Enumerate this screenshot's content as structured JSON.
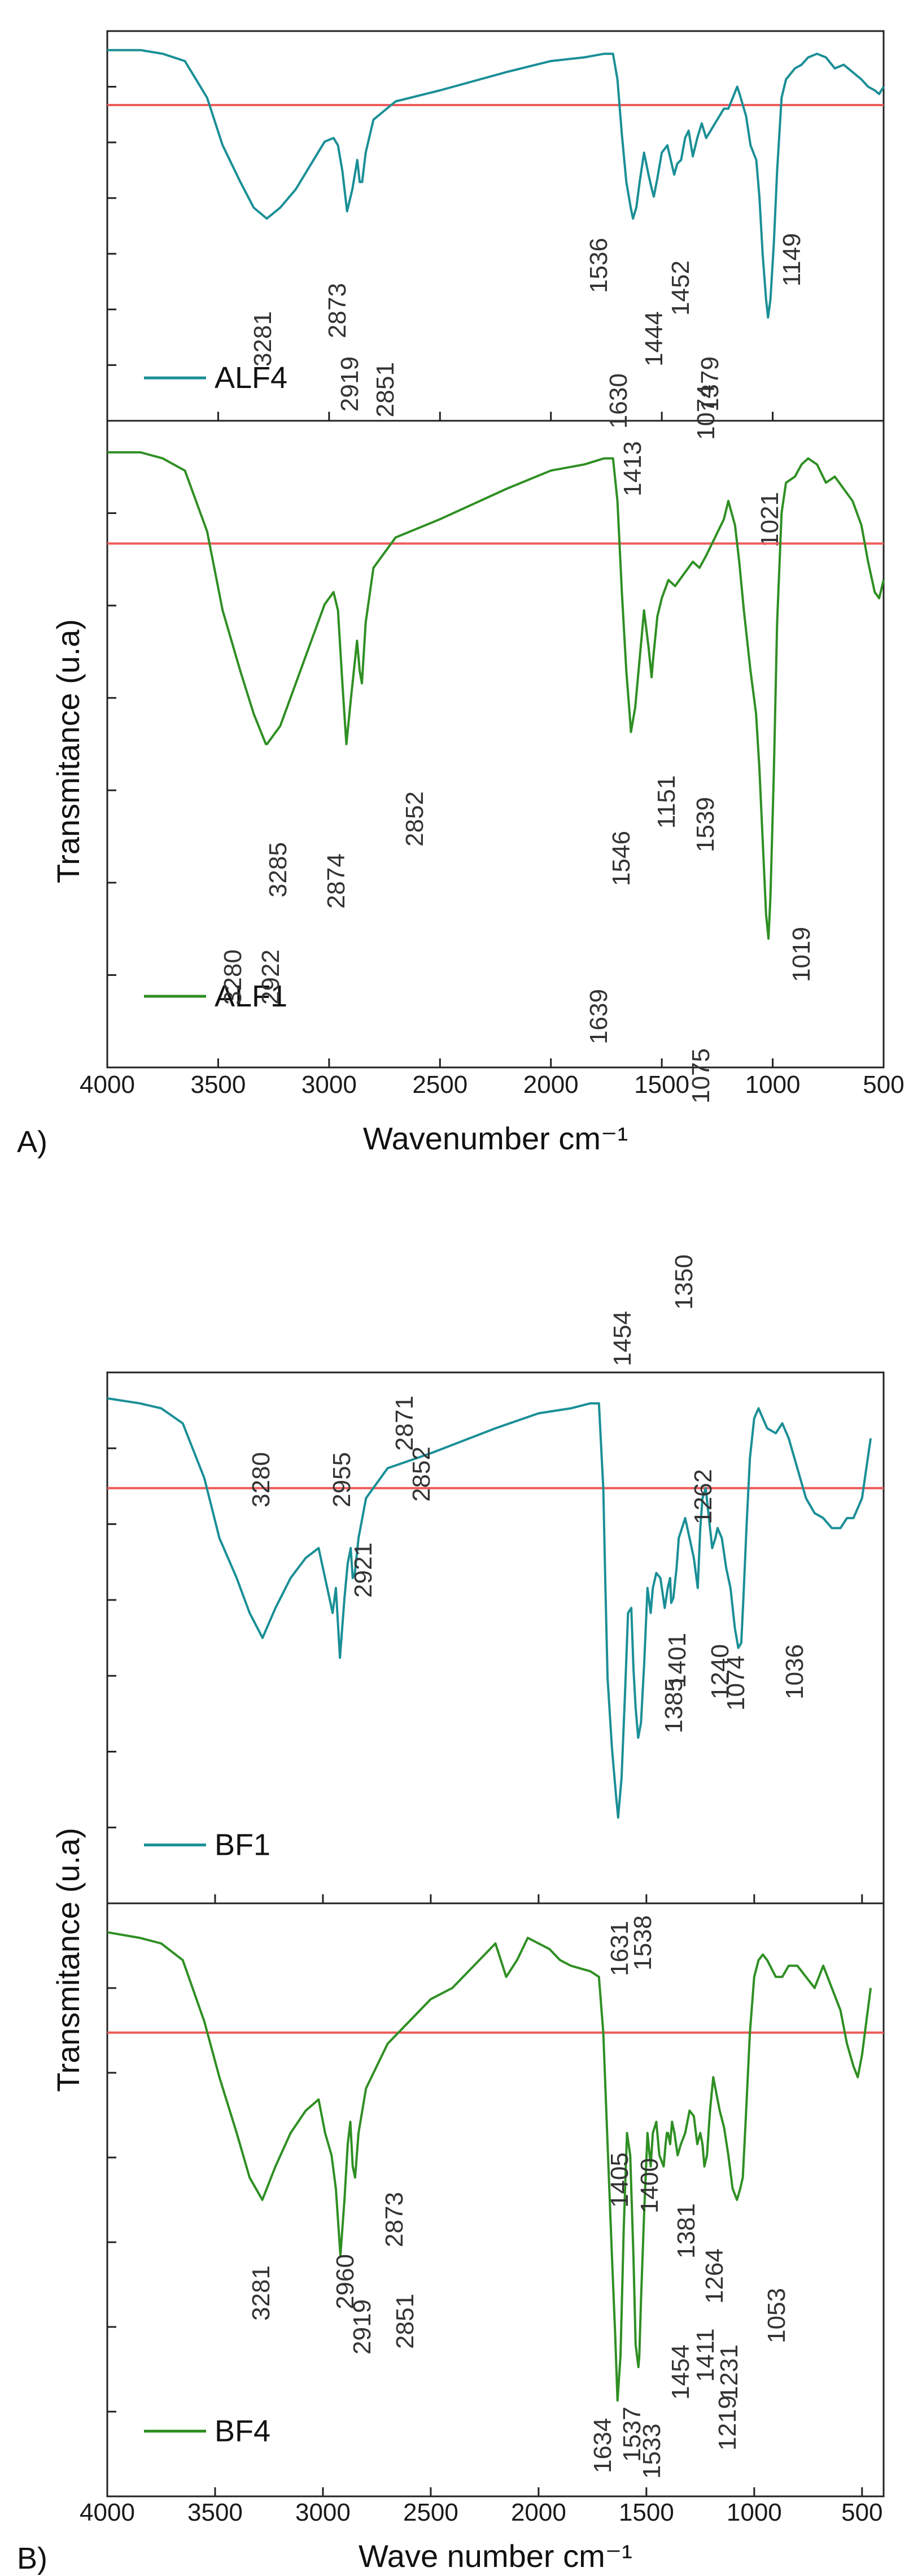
{
  "chart_data": [
    {
      "panel_label": "A)",
      "type": "line",
      "xlabel": "Wavenumber cm⁻¹",
      "ylabel": "Transmitance (u.a)",
      "xlim": [
        4000,
        500
      ],
      "xticks": [
        "4000",
        "3500",
        "3000",
        "2500",
        "2000",
        "1500",
        "1000",
        "500"
      ],
      "ylim": [
        0,
        100
      ],
      "series": [
        {
          "name": "ALF4",
          "color": "#1a8f96",
          "baseline_y": 83,
          "x": [
            4000,
            3850,
            3750,
            3650,
            3550,
            3480,
            3400,
            3340,
            3281,
            3220,
            3150,
            3080,
            3020,
            2980,
            2960,
            2940,
            2919,
            2895,
            2873,
            2862,
            2851,
            2835,
            2800,
            2700,
            2500,
            2200,
            2000,
            1850,
            1760,
            1720,
            1700,
            1680,
            1660,
            1640,
            1630,
            1615,
            1600,
            1580,
            1560,
            1545,
            1536,
            1520,
            1500,
            1475,
            1452,
            1444,
            1430,
            1413,
            1395,
            1379,
            1360,
            1340,
            1320,
            1300,
            1280,
            1260,
            1240,
            1220,
            1200,
            1180,
            1160,
            1149,
            1120,
            1100,
            1074,
            1060,
            1045,
            1030,
            1021,
            1010,
            995,
            980,
            960,
            940,
            900,
            870,
            840,
            800,
            760,
            720,
            680,
            640,
            600,
            570,
            540,
            520,
            500
          ],
          "y": [
            98,
            98,
            97,
            95,
            85,
            72,
            62,
            55,
            52,
            55,
            60,
            67,
            73,
            74,
            72,
            65,
            54,
            60,
            68,
            62,
            62,
            70,
            79,
            84,
            87,
            92,
            95,
            96,
            97,
            97,
            90,
            75,
            62,
            55,
            52,
            55,
            62,
            70,
            64,
            60,
            58,
            63,
            70,
            72,
            66,
            64,
            67,
            68,
            74,
            76,
            69,
            74,
            78,
            74,
            76,
            78,
            80,
            82,
            82,
            85,
            88,
            86,
            80,
            72,
            68,
            58,
            42,
            30,
            25,
            30,
            45,
            65,
            85,
            90,
            93,
            94,
            96,
            97,
            96,
            93,
            94,
            92,
            90,
            88,
            87,
            86,
            88
          ]
        },
        {
          "name": "ALF1",
          "color": "#2f8f23",
          "baseline_y": 83,
          "x": [
            4000,
            3850,
            3750,
            3650,
            3550,
            3480,
            3400,
            3340,
            3285,
            3280,
            3220,
            3150,
            3080,
            3020,
            2980,
            2960,
            2940,
            2922,
            2900,
            2874,
            2862,
            2852,
            2835,
            2800,
            2700,
            2500,
            2200,
            2000,
            1850,
            1760,
            1720,
            1700,
            1680,
            1660,
            1645,
            1639,
            1620,
            1600,
            1580,
            1560,
            1546,
            1539,
            1520,
            1500,
            1470,
            1440,
            1400,
            1360,
            1330,
            1300,
            1260,
            1220,
            1200,
            1170,
            1151,
            1130,
            1100,
            1075,
            1060,
            1040,
            1030,
            1019,
            1010,
            995,
            980,
            960,
            940,
            900,
            870,
            840,
            800,
            760,
            720,
            680,
            640,
            600,
            570,
            540,
            520,
            500
          ],
          "y": [
            98,
            98,
            97,
            95,
            85,
            72,
            62,
            55,
            50,
            50,
            53,
            60,
            67,
            73,
            75,
            72,
            60,
            50,
            58,
            67,
            62,
            60,
            70,
            79,
            84,
            87,
            92,
            95,
            96,
            97,
            97,
            90,
            75,
            62,
            55,
            52,
            56,
            64,
            72,
            66,
            61,
            64,
            71,
            74,
            77,
            76,
            78,
            80,
            79,
            81,
            84,
            87,
            90,
            86,
            80,
            72,
            62,
            55,
            46,
            30,
            22,
            18,
            25,
            45,
            70,
            88,
            93,
            94,
            96,
            97,
            96,
            93,
            94,
            92,
            90,
            86,
            80,
            75,
            74,
            77
          ]
        }
      ],
      "peak_labels": {
        "ALF4": [
          "3281",
          "2873",
          "2919",
          "2851",
          "1536",
          "1630",
          "1413",
          "1444",
          "1452",
          "1379",
          "1074",
          "1021",
          "1149"
        ],
        "ALF1": [
          "3280",
          "3285",
          "2922",
          "2874",
          "2852",
          "1639",
          "1546",
          "1151",
          "1539",
          "1075",
          "1019"
        ]
      }
    },
    {
      "panel_label": "B)",
      "type": "line",
      "xlabel": "Wave number cm⁻¹",
      "ylabel": "Transmitance (u.a)",
      "xlim": [
        4000,
        400
      ],
      "xticks": [
        "4000",
        "3500",
        "3000",
        "2500",
        "2000",
        "1500",
        "1000",
        "500"
      ],
      "ylim": [
        0,
        100
      ],
      "series": [
        {
          "name": "BF1",
          "color": "#1a8f96",
          "baseline_y": 80,
          "x": [
            4000,
            3850,
            3750,
            3650,
            3550,
            3480,
            3400,
            3340,
            3280,
            3220,
            3150,
            3080,
            3020,
            2980,
            2955,
            2940,
            2921,
            2900,
            2885,
            2871,
            2862,
            2852,
            2835,
            2800,
            2700,
            2500,
            2200,
            2000,
            1850,
            1760,
            1720,
            1700,
            1690,
            1680,
            1660,
            1640,
            1631,
            1615,
            1600,
            1585,
            1570,
            1560,
            1550,
            1538,
            1525,
            1510,
            1495,
            1480,
            1470,
            1454,
            1435,
            1415,
            1401,
            1390,
            1385,
            1375,
            1360,
            1350,
            1335,
            1320,
            1300,
            1280,
            1262,
            1250,
            1240,
            1225,
            1210,
            1195,
            1180,
            1170,
            1150,
            1130,
            1110,
            1090,
            1074,
            1060,
            1050,
            1036,
            1020,
            1000,
            980,
            960,
            940,
            900,
            870,
            840,
            800,
            760,
            720,
            680,
            640,
            600,
            570,
            540,
            520,
            500,
            480,
            460
          ],
          "y": [
            98,
            97,
            96,
            93,
            82,
            70,
            62,
            55,
            50,
            56,
            62,
            66,
            68,
            60,
            55,
            60,
            46,
            58,
            65,
            68,
            62,
            63,
            70,
            78,
            84,
            87,
            92,
            95,
            96,
            97,
            97,
            80,
            60,
            42,
            28,
            18,
            14,
            22,
            38,
            55,
            56,
            44,
            36,
            30,
            33,
            45,
            60,
            55,
            60,
            63,
            62,
            56,
            60,
            62,
            57,
            58,
            64,
            70,
            72,
            74,
            70,
            66,
            60,
            72,
            78,
            80,
            74,
            68,
            70,
            72,
            70,
            64,
            60,
            52,
            48,
            49,
            58,
            72,
            86,
            94,
            96,
            94,
            92,
            91,
            93,
            90,
            84,
            78,
            75,
            74,
            72,
            72,
            74,
            74,
            76,
            78,
            84,
            90
          ]
        },
        {
          "name": "BF4",
          "color": "#2f8f23",
          "baseline_y": 80,
          "x": [
            4000,
            3850,
            3750,
            3650,
            3550,
            3480,
            3400,
            3340,
            3281,
            3220,
            3150,
            3080,
            3020,
            2990,
            2960,
            2940,
            2919,
            2900,
            2885,
            2873,
            2862,
            2851,
            2835,
            2800,
            2700,
            2600,
            2500,
            2400,
            2300,
            2200,
            2150,
            2100,
            2050,
            2000,
            1950,
            1900,
            1850,
            1760,
            1720,
            1700,
            1680,
            1660,
            1645,
            1634,
            1620,
            1605,
            1590,
            1575,
            1560,
            1550,
            1537,
            1533,
            1525,
            1510,
            1495,
            1480,
            1470,
            1454,
            1440,
            1420,
            1411,
            1405,
            1400,
            1390,
            1381,
            1370,
            1355,
            1340,
            1320,
            1300,
            1280,
            1264,
            1250,
            1240,
            1231,
            1219,
            1205,
            1190,
            1180,
            1160,
            1140,
            1120,
            1100,
            1080,
            1065,
            1053,
            1040,
            1020,
            1000,
            980,
            960,
            940,
            900,
            870,
            840,
            800,
            760,
            720,
            680,
            640,
            600,
            570,
            540,
            520,
            500,
            480,
            460
          ],
          "y": [
            98,
            97,
            96,
            93,
            82,
            72,
            62,
            54,
            50,
            56,
            62,
            66,
            68,
            62,
            58,
            52,
            40,
            50,
            60,
            64,
            56,
            54,
            62,
            70,
            78,
            82,
            86,
            88,
            92,
            96,
            90,
            93,
            97,
            96,
            95,
            93,
            92,
            91,
            90,
            80,
            60,
            40,
            26,
            14,
            22,
            45,
            62,
            58,
            40,
            24,
            20,
            22,
            32,
            48,
            62,
            56,
            62,
            64,
            58,
            56,
            60,
            62,
            62,
            60,
            64,
            62,
            58,
            60,
            62,
            66,
            65,
            60,
            62,
            60,
            56,
            58,
            66,
            72,
            70,
            66,
            63,
            58,
            52,
            50,
            52,
            54,
            64,
            80,
            90,
            93,
            94,
            93,
            90,
            90,
            92,
            92,
            90,
            88,
            92,
            88,
            84,
            78,
            74,
            72,
            76,
            82,
            88
          ]
        }
      ],
      "peak_labels": {
        "BF1": [
          "3280",
          "2955",
          "2921",
          "2871",
          "2852",
          "1454",
          "1631",
          "1538",
          "1401",
          "1385",
          "1350",
          "1262",
          "1240",
          "1074",
          "1036"
        ],
        "BF4": [
          "3281",
          "2960",
          "2919",
          "2873",
          "2851",
          "1405",
          "1400",
          "1634",
          "1537",
          "1533",
          "1454",
          "1411",
          "1381",
          "1264",
          "1231",
          "1219",
          "1053"
        ]
      }
    }
  ]
}
